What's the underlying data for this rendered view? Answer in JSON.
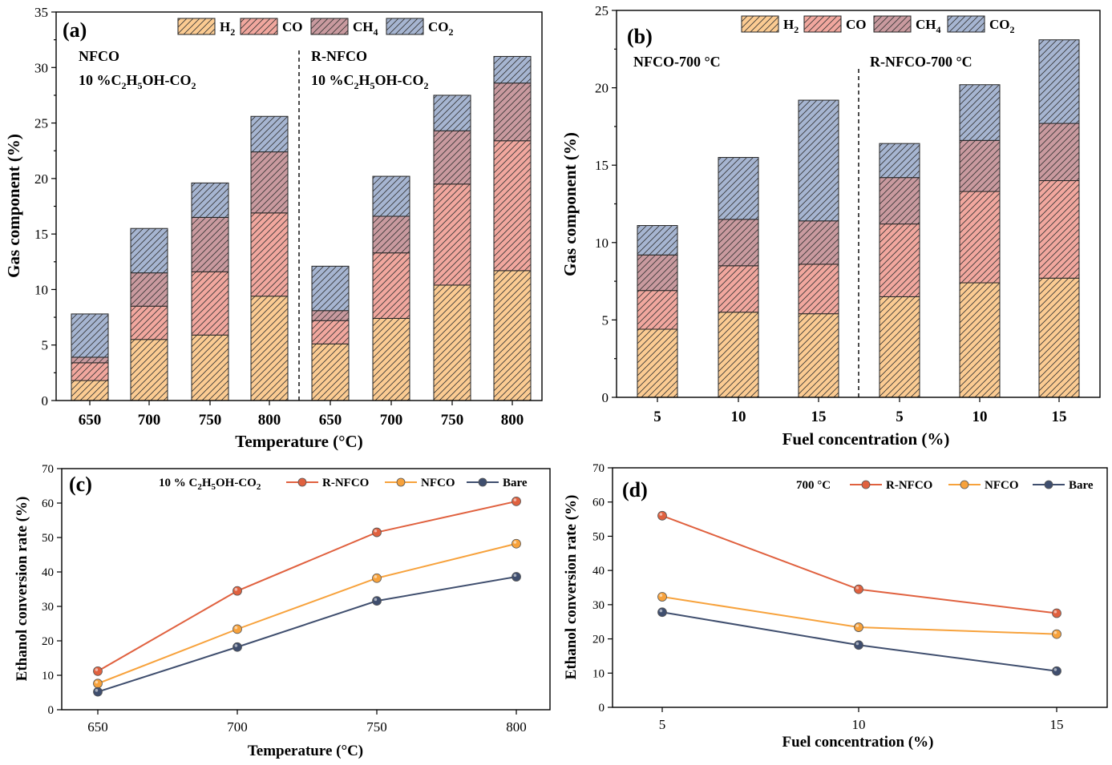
{
  "chart_data": [
    {
      "type": "bar",
      "stacked": true,
      "panel_label": "(a)",
      "xlabel": "Temperature (°C)",
      "ylabel": "Gas component (%)",
      "ylim": [
        0,
        35
      ],
      "yticks": [
        "0",
        "5",
        "10",
        "15",
        "20",
        "25",
        "30",
        "35"
      ],
      "categories": [
        "650",
        "700",
        "750",
        "800",
        "650",
        "700",
        "750",
        "800"
      ],
      "groups": [
        {
          "name": "NFCO",
          "condition_pre": "10 %C",
          "condition_sub1": "2",
          "condition_mid": "H",
          "condition_sub2": "5",
          "condition_post": "OH-CO",
          "condition_sub3": "2"
        },
        {
          "name": "R-NFCO",
          "condition_pre": "10 %C",
          "condition_sub1": "2",
          "condition_mid": "H",
          "condition_sub2": "5",
          "condition_post": "OH-CO",
          "condition_sub3": "2"
        }
      ],
      "series": [
        {
          "name": "H",
          "sub": "2",
          "color": "#fbcb92",
          "values": [
            1.8,
            5.5,
            5.9,
            9.4,
            5.1,
            7.4,
            10.4,
            11.7
          ]
        },
        {
          "name": "CO",
          "sub": "",
          "color": "#f1a79e",
          "values": [
            1.6,
            3.0,
            5.7,
            7.5,
            2.1,
            5.9,
            9.1,
            11.7
          ]
        },
        {
          "name": "CH",
          "sub": "4",
          "color": "#c99a9f",
          "values": [
            0.5,
            3.0,
            4.9,
            5.5,
            0.9,
            3.3,
            4.8,
            5.2
          ]
        },
        {
          "name": "CO",
          "sub": "2",
          "color": "#a6b5d1",
          "values": [
            3.9,
            4.0,
            3.1,
            3.2,
            4.0,
            3.6,
            3.2,
            2.4
          ]
        }
      ]
    },
    {
      "type": "bar",
      "stacked": true,
      "panel_label": "(b)",
      "xlabel": "Fuel concentration (%)",
      "ylabel": "Gas component (%)",
      "ylim": [
        0,
        25
      ],
      "yticks": [
        "0",
        "5",
        "10",
        "15",
        "20",
        "25"
      ],
      "categories": [
        "5",
        "10",
        "15",
        "5",
        "10",
        "15"
      ],
      "groups": [
        {
          "name": "NFCO-700 °C"
        },
        {
          "name": "R-NFCO-700 °C"
        }
      ],
      "series": [
        {
          "name": "H",
          "sub": "2",
          "color": "#fbcb92",
          "values": [
            4.4,
            5.5,
            5.4,
            6.5,
            7.4,
            7.7
          ]
        },
        {
          "name": "CO",
          "sub": "",
          "color": "#f1a79e",
          "values": [
            2.5,
            3.0,
            3.2,
            4.7,
            5.9,
            6.3
          ]
        },
        {
          "name": "CH",
          "sub": "4",
          "color": "#c99a9f",
          "values": [
            2.3,
            3.0,
            2.8,
            3.0,
            3.3,
            3.7
          ]
        },
        {
          "name": "CO",
          "sub": "2",
          "color": "#a6b5d1",
          "values": [
            1.9,
            4.0,
            7.8,
            2.2,
            3.6,
            5.4
          ]
        }
      ]
    },
    {
      "type": "line",
      "panel_label": "(c)",
      "xlabel": "Temperature (°C)",
      "ylabel": "Ethanol conversion rate (%)",
      "x": [
        650,
        700,
        750,
        800
      ],
      "xticks": [
        "650",
        "700",
        "750",
        "800"
      ],
      "ylim": [
        0,
        70
      ],
      "yticks": [
        "0",
        "10",
        "20",
        "30",
        "40",
        "50",
        "60",
        "70"
      ],
      "legend_title_pre": "10 % C",
      "legend_title_sub1": "2",
      "legend_title_mid": "H",
      "legend_title_sub2": "5",
      "legend_title_post": "OH-CO",
      "legend_title_sub3": "2",
      "series": [
        {
          "name": "R-NFCO",
          "color": "#e0613f",
          "values": [
            11.2,
            34.5,
            51.5,
            60.5
          ]
        },
        {
          "name": "NFCO",
          "color": "#f7a23c",
          "values": [
            7.6,
            23.4,
            38.2,
            48.2
          ]
        },
        {
          "name": "Bare",
          "color": "#3f4e6e",
          "values": [
            5.2,
            18.2,
            31.6,
            38.6
          ]
        }
      ]
    },
    {
      "type": "line",
      "panel_label": "(d)",
      "xlabel": "Fuel concentration (%)",
      "ylabel": "Ethanol conversion rate (%)",
      "x": [
        5,
        10,
        15
      ],
      "xticks": [
        "5",
        "10",
        "15"
      ],
      "ylim": [
        0,
        70
      ],
      "yticks": [
        "0",
        "10",
        "20",
        "30",
        "40",
        "50",
        "60",
        "70"
      ],
      "legend_title": "700 °C",
      "series": [
        {
          "name": "R-NFCO",
          "color": "#e0613f",
          "values": [
            56.0,
            34.5,
            27.5
          ]
        },
        {
          "name": "NFCO",
          "color": "#f7a23c",
          "values": [
            32.3,
            23.4,
            21.4
          ]
        },
        {
          "name": "Bare",
          "color": "#3f4e6e",
          "values": [
            27.8,
            18.2,
            10.6
          ]
        }
      ]
    }
  ]
}
